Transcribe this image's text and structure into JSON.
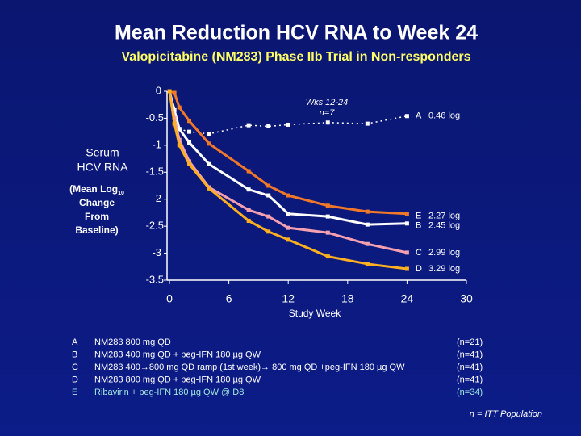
{
  "chart_data": {
    "type": "line",
    "title": "Mean Reduction HCV RNA to Week 24",
    "subtitle": "Valopicitabine (NM283) Phase IIb Trial in Non-responders",
    "y_label_lines": [
      "Serum",
      "HCV RNA"
    ],
    "y_label_note": [
      "(Mean Log",
      "10",
      "Change",
      "From",
      "Baseline)"
    ],
    "x_label": "Study  Week",
    "x": [
      0,
      0.5,
      1,
      2,
      4,
      8,
      10,
      12,
      16,
      20,
      24
    ],
    "xlim": [
      0,
      30
    ],
    "xticks": [
      0,
      6,
      12,
      18,
      24,
      30
    ],
    "ylim": [
      -3.5,
      0
    ],
    "yticks": [
      0,
      -0.5,
      -1,
      -1.5,
      -2,
      -2.5,
      -3,
      -3.5
    ],
    "annotation": [
      "Wks 12-24",
      "n=7"
    ],
    "series": [
      {
        "name": "A",
        "end_label": "0.46 log",
        "color": "#ffffff",
        "dashed": true,
        "values": [
          0,
          -0.45,
          -0.7,
          -0.75,
          -0.79,
          -0.63,
          -0.65,
          -0.62,
          -0.58,
          -0.6,
          -0.46
        ]
      },
      {
        "name": "E",
        "end_label": "2.27 log",
        "color": "#f07828",
        "dashed": false,
        "values": [
          0,
          -0.03,
          -0.3,
          -0.55,
          -0.97,
          -1.48,
          -1.75,
          -1.93,
          -2.12,
          -2.23,
          -2.27
        ]
      },
      {
        "name": "B",
        "end_label": "2.45 log",
        "color": "#ffffff",
        "dashed": false,
        "values": [
          0,
          -0.35,
          -0.7,
          -0.95,
          -1.35,
          -1.82,
          -1.93,
          -2.27,
          -2.32,
          -2.47,
          -2.45
        ]
      },
      {
        "name": "C",
        "end_label": "2.99 log",
        "color": "#f4a0b0",
        "dashed": false,
        "values": [
          0,
          -0.5,
          -0.9,
          -1.3,
          -1.78,
          -2.2,
          -2.32,
          -2.53,
          -2.62,
          -2.83,
          -2.99
        ]
      },
      {
        "name": "D",
        "end_label": "3.29 log",
        "color": "#ffb020",
        "dashed": false,
        "values": [
          0,
          -0.6,
          -1.0,
          -1.35,
          -1.8,
          -2.4,
          -2.6,
          -2.75,
          -3.06,
          -3.2,
          -3.29
        ]
      }
    ]
  },
  "legend_rows": [
    [
      "A",
      "NM283 800 mg QD",
      "(n=21)"
    ],
    [
      "B",
      "NM283 400 mg QD + peg-IFN 180 µg QW",
      "(n=41)"
    ],
    [
      "C",
      "NM283 400→800 mg QD ramp (1st week)→ 800 mg QD +peg-IFN 180 µg QW",
      "(n=41)"
    ],
    [
      "D",
      "NM283 800 mg QD + peg-IFN 180 µg QW",
      "(n=41)"
    ],
    [
      "E",
      "Ribavirin + peg-IFN 180 µg QW @ D8",
      "(n=34)"
    ]
  ],
  "footnote": "n = ITT Population"
}
